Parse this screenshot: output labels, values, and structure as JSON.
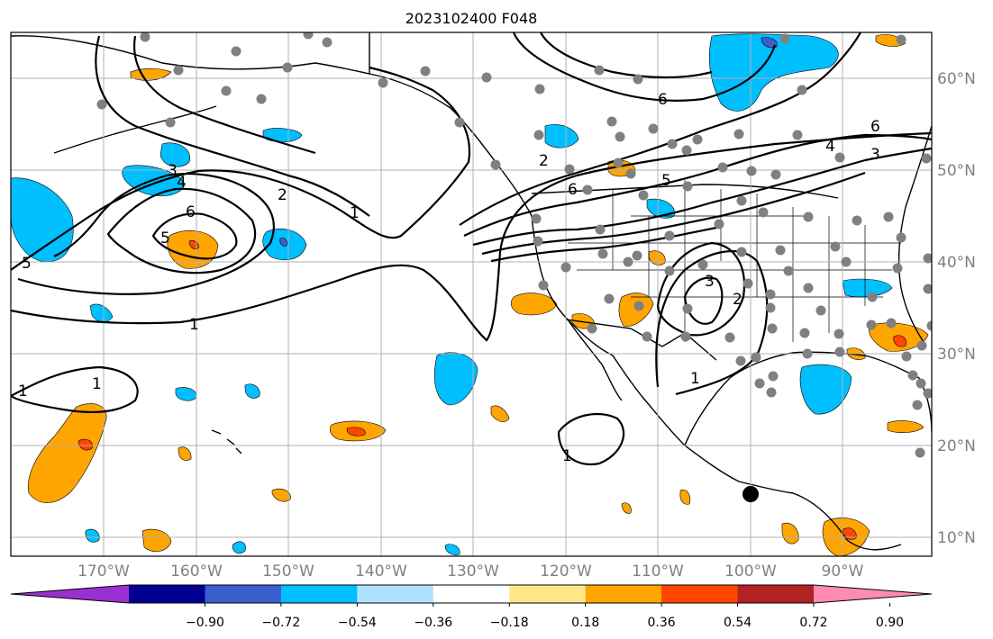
{
  "title": "2023102400 F048",
  "longitude_ticks": [
    "170°W",
    "160°W",
    "150°W",
    "140°W",
    "130°W",
    "120°W",
    "110°W",
    "100°W",
    "90°W"
  ],
  "latitude_ticks": [
    "60°N",
    "50°N",
    "40°N",
    "30°N",
    "20°N",
    "10°N"
  ],
  "colorbar": {
    "ticks": [
      "−0.90",
      "−0.72",
      "−0.54",
      "−0.36",
      "−0.18",
      "0.18",
      "0.36",
      "0.54",
      "0.72",
      "0.90"
    ],
    "colors": [
      "#9b30d0",
      "#000090",
      "#3a5fcd",
      "#00bfff",
      "#b0e2ff",
      "#ffffff",
      "#ffe88a",
      "#ffa500",
      "#ff4500",
      "#b22222",
      "#ff8cb0"
    ]
  },
  "contour_labels": [
    "1",
    "2",
    "3",
    "4",
    "5",
    "6"
  ],
  "colors": {
    "land_outline": "#000000",
    "grid": "#b0b0b0",
    "station": "#808080",
    "marker": "#000000"
  }
}
